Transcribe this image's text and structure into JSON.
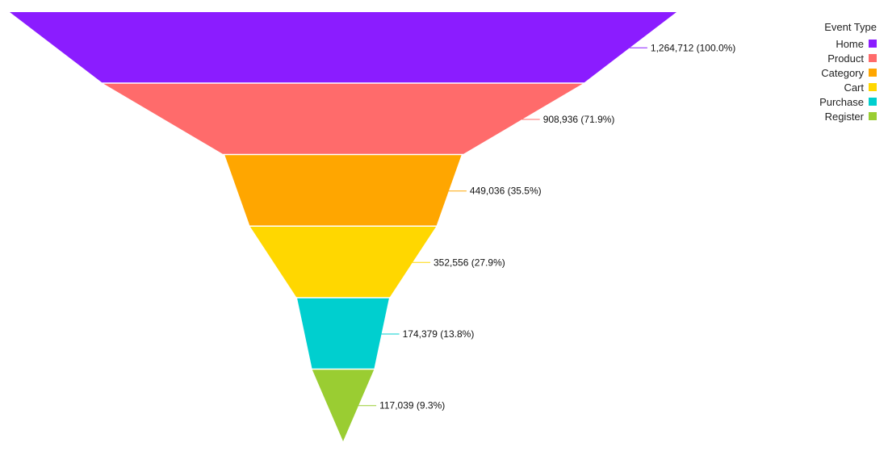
{
  "chart_data": {
    "type": "funnel",
    "legend_title": "Event Type",
    "legend_position": "top-right",
    "stages": [
      {
        "name": "Home",
        "value": 1264712,
        "label": "1,264,712 (100.0%)",
        "color": "#8b1cff"
      },
      {
        "name": "Product",
        "value": 908936,
        "label": "908,936 (71.9%)",
        "color": "#ff6b6b"
      },
      {
        "name": "Category",
        "value": 449036,
        "label": "449,036 (35.5%)",
        "color": "#ffa600"
      },
      {
        "name": "Cart",
        "value": 352556,
        "label": "352,556 (27.9%)",
        "color": "#ffd700"
      },
      {
        "name": "Purchase",
        "value": 174379,
        "label": "174,379 (13.8%)",
        "color": "#00cfcf"
      },
      {
        "name": "Register",
        "value": 117039,
        "label": "117,039 (9.3%)",
        "color": "#9acd32"
      }
    ]
  }
}
